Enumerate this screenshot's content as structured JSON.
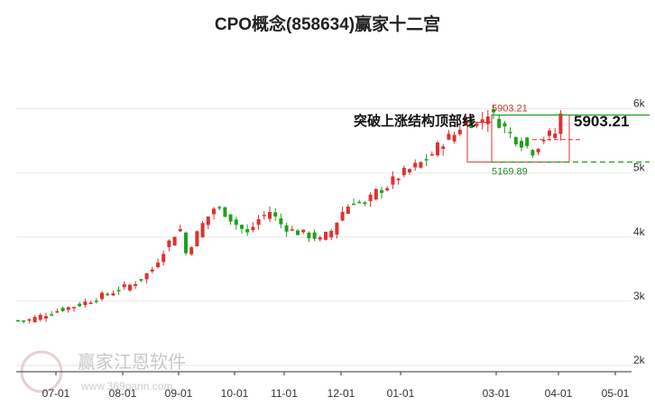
{
  "title": "CPO概念(858634)赢家十二宫",
  "chart_data": {
    "type": "candlestick",
    "title": "CPO概念(858634)赢家十二宫",
    "x_tick_labels": [
      "07-01",
      "08-01",
      "09-01",
      "10-01",
      "11-01",
      "12-01",
      "01-01",
      "03-01",
      "04-01",
      "05-01"
    ],
    "y_tick_labels": [
      "2k",
      "3k",
      "4k",
      "5k",
      "6k"
    ],
    "ylim": [
      2000,
      6200
    ],
    "grid": "horizontal",
    "colors": {
      "up": "#e03030",
      "down": "#20a020",
      "resistance": "#e03030",
      "support": "#20a020"
    },
    "annotation": {
      "label": "突破上涨结构顶部线",
      "value": "5903.21"
    },
    "resistance": {
      "value": 5903.21,
      "label": "5903.21"
    },
    "support": {
      "value": 5169.89,
      "label": "5169.89"
    },
    "trend_close": [
      [
        0,
        2700
      ],
      [
        2,
        2710
      ],
      [
        5,
        2800
      ],
      [
        8,
        2880
      ],
      [
        11,
        2950
      ],
      [
        14,
        3050
      ],
      [
        17,
        3150
      ],
      [
        20,
        3250
      ],
      [
        22,
        3350
      ],
      [
        24,
        3500
      ],
      [
        26,
        3800
      ],
      [
        28,
        4050
      ],
      [
        29,
        4120
      ],
      [
        30,
        3750
      ],
      [
        31,
        3900
      ],
      [
        33,
        4200
      ],
      [
        35,
        4450
      ],
      [
        37,
        4380
      ],
      [
        39,
        4200
      ],
      [
        41,
        4050
      ],
      [
        43,
        4280
      ],
      [
        45,
        4400
      ],
      [
        47,
        4200
      ],
      [
        49,
        4100
      ],
      [
        51,
        4050
      ],
      [
        53,
        4000
      ],
      [
        54,
        3950
      ],
      [
        56,
        4100
      ],
      [
        58,
        4400
      ],
      [
        60,
        4580
      ],
      [
        62,
        4500
      ],
      [
        64,
        4700
      ],
      [
        66,
        4800
      ],
      [
        68,
        4950
      ],
      [
        70,
        5050
      ],
      [
        72,
        5150
      ],
      [
        74,
        5300
      ],
      [
        76,
        5500
      ],
      [
        78,
        5600
      ],
      [
        80,
        5850
      ],
      [
        82,
        5750
      ],
      [
        84,
        5950
      ],
      [
        86,
        5800
      ],
      [
        88,
        5600
      ],
      [
        90,
        5480
      ],
      [
        92,
        5350
      ],
      [
        94,
        5550
      ],
      [
        96,
        5620
      ],
      [
        97,
        5903
      ]
    ]
  },
  "watermark": {
    "text": "赢家江恩软件",
    "url": "www.369gann.com"
  }
}
